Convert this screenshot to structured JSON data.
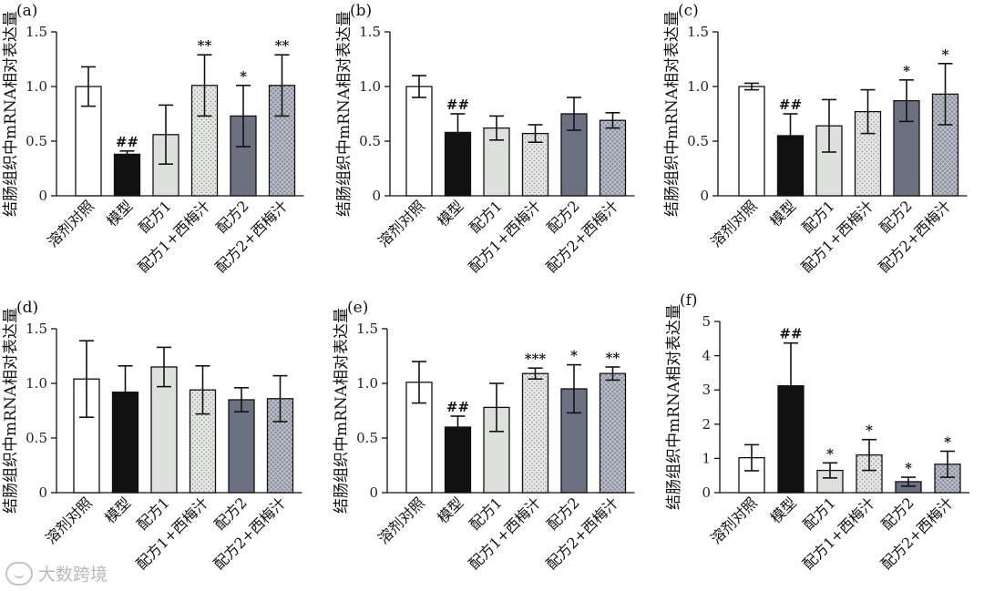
{
  "figure": {
    "categories": [
      "溶剂对照",
      "模型",
      "配方1",
      "配方1+西梅汁",
      "配方2",
      "配方2+西梅汁"
    ],
    "ylabel": "结肠组织中mRNA相对表达量",
    "watermark": "大数跨境",
    "colors": {
      "solvent": "#ffffff",
      "model": "#111111",
      "formula1": "#dde0dc",
      "formula1_prune": "#e4e6e3",
      "formula2": "#6b7180",
      "formula2_prune": "#8d93a0"
    }
  },
  "chart_data": [
    {
      "type": "bar",
      "title": "(a)",
      "label": "(a)",
      "xlabel": "",
      "ylabel": "结肠组织中mRNA相对表达量",
      "ylim": [
        0,
        1.5
      ],
      "yticks": [
        "0",
        "0.5",
        "1.0",
        "1.5"
      ],
      "ytick_values": [
        0,
        0.5,
        1.0,
        1.5
      ],
      "categories": [
        "溶剂对照",
        "模型",
        "配方1",
        "配方1+西梅汁",
        "配方2",
        "配方2+西梅汁"
      ],
      "values": [
        1.0,
        0.38,
        0.56,
        1.01,
        0.73,
        1.01
      ],
      "errors": [
        0.18,
        0.03,
        0.27,
        0.28,
        0.28,
        0.28
      ],
      "annotations": [
        "",
        "##",
        "",
        "**",
        "*",
        "**"
      ]
    },
    {
      "type": "bar",
      "title": "(b)",
      "label": "(b)",
      "xlabel": "",
      "ylabel": "结肠组织中mRNA相对表达量",
      "ylim": [
        0,
        1.5
      ],
      "yticks": [
        "0",
        "0.5",
        "1.0",
        "1.5"
      ],
      "ytick_values": [
        0,
        0.5,
        1.0,
        1.5
      ],
      "categories": [
        "溶剂对照",
        "模型",
        "配方1",
        "配方1+西梅汁",
        "配方2",
        "配方2+西梅汁"
      ],
      "values": [
        1.0,
        0.58,
        0.62,
        0.57,
        0.75,
        0.69
      ],
      "errors": [
        0.1,
        0.17,
        0.11,
        0.08,
        0.15,
        0.07
      ],
      "annotations": [
        "",
        "##",
        "",
        "",
        "",
        ""
      ]
    },
    {
      "type": "bar",
      "title": "(c)",
      "label": "(c)",
      "xlabel": "",
      "ylabel": "结肠组织中mRNA相对表达量",
      "ylim": [
        0,
        1.5
      ],
      "yticks": [
        "0",
        "0.5",
        "1.0",
        "1.5"
      ],
      "ytick_values": [
        0,
        0.5,
        1.0,
        1.5
      ],
      "categories": [
        "溶剂对照",
        "模型",
        "配方1",
        "配方1+西梅汁",
        "配方2",
        "配方2+西梅汁"
      ],
      "values": [
        1.0,
        0.55,
        0.64,
        0.77,
        0.87,
        0.93
      ],
      "errors": [
        0.03,
        0.2,
        0.24,
        0.2,
        0.19,
        0.28
      ],
      "annotations": [
        "",
        "##",
        "",
        "",
        "*",
        "*"
      ]
    },
    {
      "type": "bar",
      "title": "(d)",
      "label": "(d)",
      "xlabel": "",
      "ylabel": "结肠组织中mRNA相对表达量",
      "ylim": [
        0,
        1.5
      ],
      "yticks": [
        "0",
        "0.5",
        "1.0",
        "1.5"
      ],
      "ytick_values": [
        0,
        0.5,
        1.0,
        1.5
      ],
      "categories": [
        "溶剂对照",
        "模型",
        "配方1",
        "配方1+西梅汁",
        "配方2",
        "配方2+西梅汁"
      ],
      "values": [
        1.04,
        0.92,
        1.15,
        0.94,
        0.85,
        0.86
      ],
      "errors": [
        0.35,
        0.24,
        0.18,
        0.22,
        0.11,
        0.21
      ],
      "annotations": [
        "",
        "",
        "",
        "",
        "",
        ""
      ]
    },
    {
      "type": "bar",
      "title": "(e)",
      "label": "(e)",
      "xlabel": "",
      "ylabel": "结肠组织中mRNA相对表达量",
      "ylim": [
        0,
        1.5
      ],
      "yticks": [
        "0",
        "0.5",
        "1.0",
        "1.5"
      ],
      "ytick_values": [
        0,
        0.5,
        1.0,
        1.5
      ],
      "categories": [
        "溶剂对照",
        "模型",
        "配方1",
        "配方1+西梅汁",
        "配方2",
        "配方2+西梅汁"
      ],
      "values": [
        1.01,
        0.6,
        0.78,
        1.09,
        0.95,
        1.09
      ],
      "errors": [
        0.19,
        0.1,
        0.22,
        0.05,
        0.22,
        0.06
      ],
      "annotations": [
        "",
        "##",
        "",
        "***",
        "*",
        "**"
      ]
    },
    {
      "type": "bar",
      "title": "(f)",
      "label": "(f)",
      "xlabel": "",
      "ylabel": "结肠组织中mRNA相对表达量",
      "ylim": [
        0,
        5
      ],
      "yticks": [
        "0",
        "1",
        "2",
        "3",
        "4",
        "5"
      ],
      "ytick_values": [
        0,
        1,
        2,
        3,
        4,
        5
      ],
      "categories": [
        "溶剂对照",
        "模型",
        "配方1",
        "配方1+西梅汁",
        "配方2",
        "配方2+西梅汁"
      ],
      "values": [
        1.02,
        3.12,
        0.65,
        1.1,
        0.32,
        0.83
      ],
      "errors": [
        0.38,
        1.25,
        0.22,
        0.45,
        0.13,
        0.38
      ],
      "annotations": [
        "",
        "##",
        "*",
        "*",
        "*",
        "*"
      ]
    }
  ]
}
